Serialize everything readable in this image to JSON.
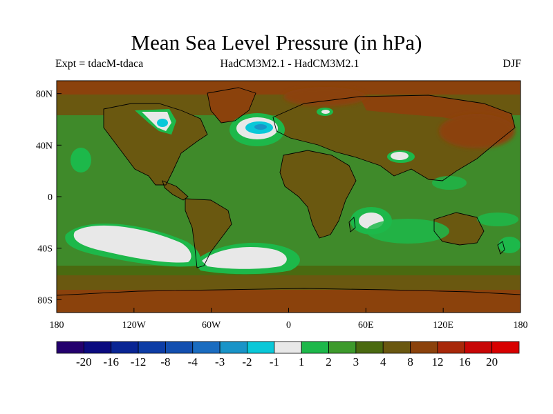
{
  "title": "Mean Sea Level Pressure (in hPa)",
  "subtitle_left": "Expt = tdacM-tdaca",
  "subtitle_center": "HadCM3M2.1 - HadCM3M2.1",
  "subtitle_right": "DJF",
  "map": {
    "lat_ticks": [
      "80N",
      "40N",
      "0",
      "40S",
      "80S"
    ],
    "lat_values": [
      80,
      40,
      0,
      -40,
      -80
    ],
    "lon_ticks": [
      "180",
      "120W",
      "60W",
      "0",
      "60E",
      "120E",
      "180"
    ],
    "lon_values": [
      -180,
      -120,
      -60,
      0,
      60,
      120,
      180
    ],
    "lon_range": [
      -180,
      180
    ],
    "lat_range": [
      -90,
      90
    ],
    "projection": "cylindrical-equidistant"
  },
  "colorbar": {
    "labels": [
      "-20",
      "-16",
      "-12",
      "-8",
      "-4",
      "-3",
      "-2",
      "-1",
      "1",
      "2",
      "3",
      "4",
      "8",
      "12",
      "16",
      "20"
    ],
    "colors": [
      "#24006e",
      "#0b0b80",
      "#092594",
      "#0d3da6",
      "#134fb0",
      "#1a6cc0",
      "#1994c8",
      "#09c8d8",
      "#e8e8e8",
      "#1db84a",
      "#3d9a2c",
      "#4a6a10",
      "#6a5810",
      "#8b420c",
      "#a8280a",
      "#c80606",
      "#d80000"
    ]
  },
  "legend_colors": {
    "ocean_base": "#3f8a2a",
    "land_base": "#6a5810"
  }
}
